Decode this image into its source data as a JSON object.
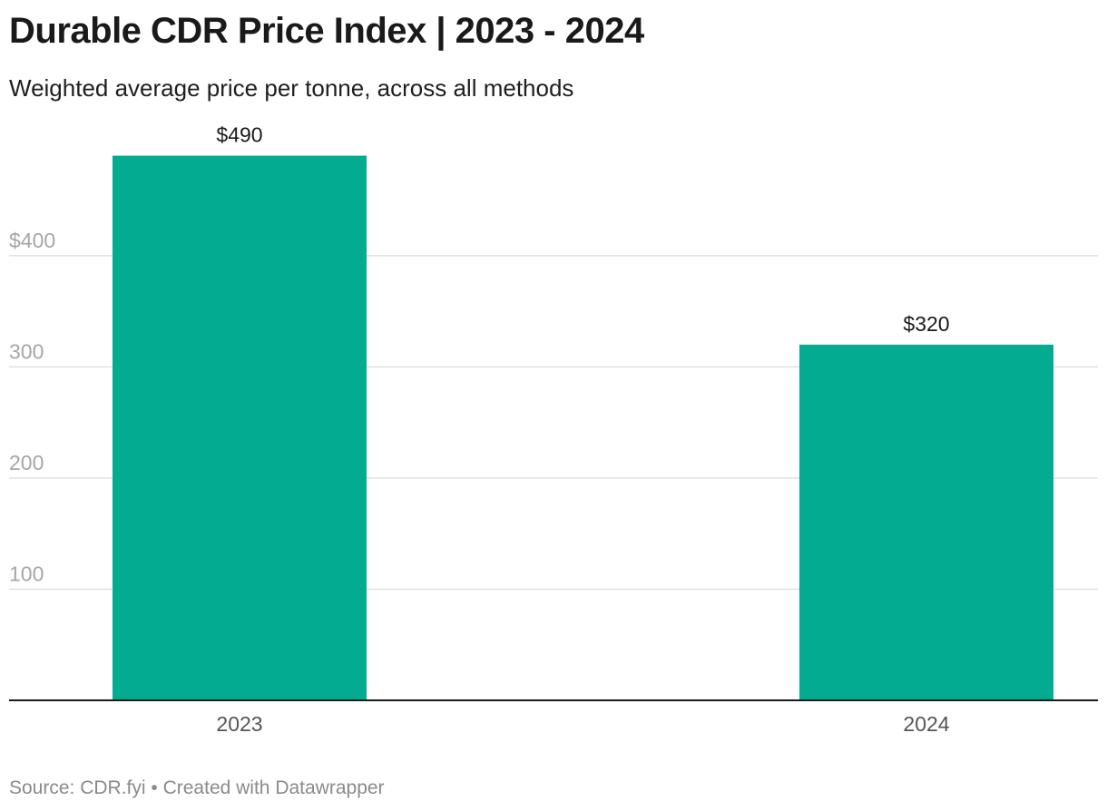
{
  "title": "Durable CDR Price Index | 2023 - 2024",
  "subtitle": "Weighted average price per tonne, across all methods",
  "footer": {
    "source": "Source: CDR.fyi",
    "separator": "•",
    "credit": "Created with Datawrapper"
  },
  "colors": {
    "bar": "#03ab90",
    "grid": "#e0e0e0",
    "axis": "#1a1a1a",
    "tick_label": "#a6a6a6",
    "category_label": "#555555",
    "value_label": "#1a1a1a"
  },
  "chart_data": {
    "type": "bar",
    "categories": [
      "2023",
      "2024"
    ],
    "values": [
      490,
      320
    ],
    "value_labels": [
      "$490",
      "$320"
    ],
    "ylim": [
      0,
      490
    ],
    "yticks": [
      100,
      200,
      300,
      400
    ],
    "ytick_labels": [
      "100",
      "200",
      "300",
      "$400"
    ],
    "grid": true,
    "legend": "none"
  }
}
